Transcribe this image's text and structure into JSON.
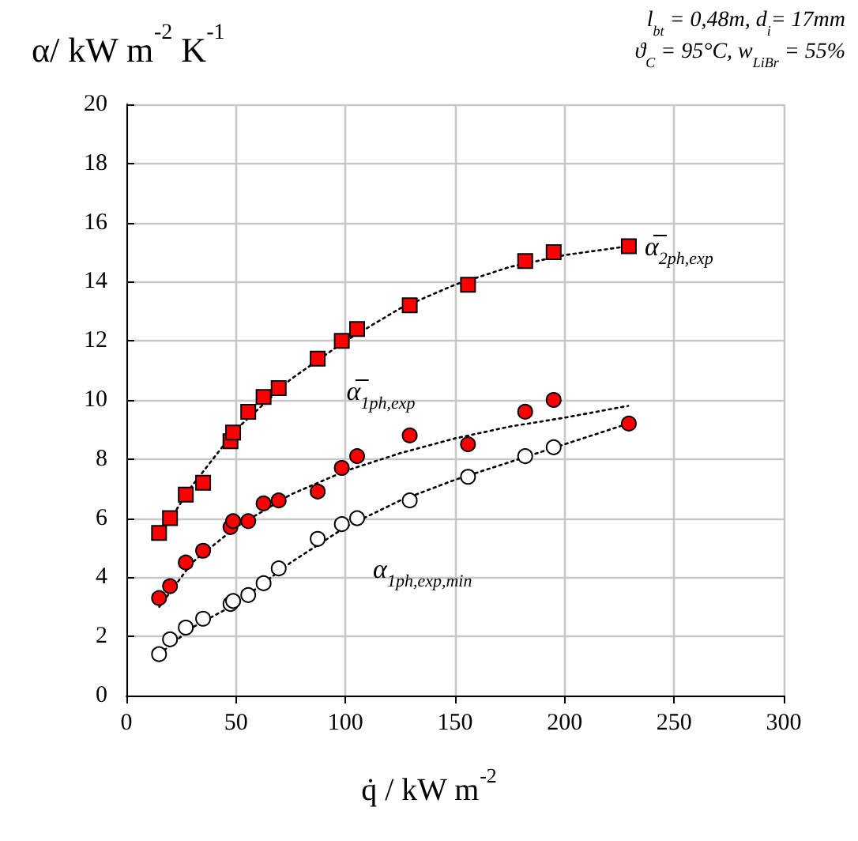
{
  "chart_data": {
    "type": "scatter",
    "ylabel": "α/ kW m$^{-2}$ K$^{-1}$",
    "xlabel": "q̇ / kW m$^{-2}$",
    "annotations": [
      "l$_{bt}$ = 0,48m, d$_{i}$= 17mm",
      "ϑ$_{C}$ = 95°C, w$_{LiBr}$ = 55%"
    ],
    "xlim": [
      0,
      300
    ],
    "xticks": [
      0,
      50,
      100,
      150,
      200,
      250,
      300
    ],
    "ylim": [
      0,
      20
    ],
    "yticks": [
      0,
      2,
      4,
      6,
      8,
      10,
      12,
      14,
      16,
      18,
      20
    ],
    "grid": true,
    "series": [
      {
        "name": "α̅$_{2ph,exp}$",
        "marker": "square",
        "color": "#ff0000",
        "x": [
          14.9,
          19.9,
          27.1,
          35,
          47.5,
          48.7,
          55.6,
          62.6,
          69.5,
          87.3,
          98.3,
          105.3,
          129.3,
          155.9,
          182,
          195,
          229.3
        ],
        "values": [
          5.5,
          6.0,
          6.8,
          7.2,
          8.6,
          8.9,
          9.6,
          10.1,
          10.4,
          11.4,
          12.0,
          12.4,
          13.2,
          13.9,
          14.7,
          15.0,
          15.2
        ]
      },
      {
        "name": "α̅$_{1ph,exp}$",
        "marker": "circle",
        "color": "#ff0000",
        "x": [
          14.9,
          19.9,
          27.1,
          35,
          47.5,
          48.7,
          55.6,
          62.6,
          69.5,
          87.3,
          98.3,
          105.3,
          129.3,
          155.9,
          182,
          195,
          229.3
        ],
        "values": [
          3.3,
          3.7,
          4.5,
          4.9,
          5.7,
          5.9,
          5.9,
          6.5,
          6.6,
          6.9,
          7.7,
          8.1,
          8.8,
          8.5,
          9.6,
          10.0,
          9.2
        ]
      },
      {
        "name": "α$_{1ph,exp,min}$",
        "marker": "circle",
        "color": "#ffffff",
        "x": [
          14.9,
          19.9,
          27.1,
          35,
          47.5,
          48.7,
          55.6,
          62.6,
          69.5,
          87.3,
          98.3,
          105.3,
          129.3,
          155.9,
          182,
          195
        ],
        "values": [
          1.4,
          1.9,
          2.3,
          2.6,
          3.1,
          3.2,
          3.4,
          3.8,
          4.3,
          5.3,
          5.8,
          6.0,
          6.6,
          7.4,
          8.1,
          8.4
        ]
      },
      {
        "type": "line",
        "marker": "none",
        "line_style": "dotted",
        "color": "#000000",
        "x": [
          15,
          30,
          50,
          75,
          100,
          125,
          150,
          175,
          200,
          229
        ],
        "values": [
          5.4,
          7.1,
          9.0,
          10.7,
          12.0,
          13.1,
          13.9,
          14.5,
          14.9,
          15.2
        ]
      },
      {
        "type": "line",
        "marker": "none",
        "line_style": "dotted",
        "color": "#000000",
        "x": [
          15,
          30,
          50,
          75,
          100,
          125,
          150,
          175,
          200,
          229
        ],
        "values": [
          3.0,
          4.5,
          5.7,
          6.8,
          7.6,
          8.2,
          8.7,
          9.1,
          9.4,
          9.8
        ]
      },
      {
        "type": "line",
        "marker": "none",
        "line_style": "dotted",
        "color": "#000000",
        "x": [
          15,
          30,
          50,
          75,
          100,
          125,
          150,
          175,
          200,
          229
        ],
        "values": [
          1.4,
          2.3,
          3.1,
          4.5,
          5.7,
          6.6,
          7.3,
          7.9,
          8.5,
          9.2
        ]
      }
    ]
  }
}
